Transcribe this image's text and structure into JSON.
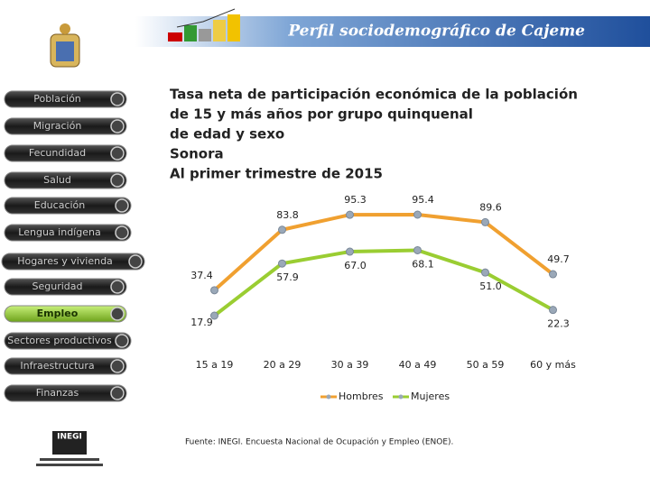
{
  "header": {
    "title": "Perfil sociodemográfico de Cajeme"
  },
  "nav": [
    "Población",
    "Migración",
    "Fecundidad",
    "Salud",
    "Educación",
    "Lengua indígena",
    "Hogares y vivienda",
    "Seguridad",
    "Empleo",
    "Sectores productivos",
    "Infraestructura",
    "Finanzas"
  ],
  "logo_text": "INEGI",
  "chart_data": {
    "type": "line",
    "title_lines": [
      "Tasa neta de participación económica de la población",
      "de 15 y más años por grupo quinquenal",
      "de edad y sexo",
      "Sonora",
      "Al primer trimestre de 2015"
    ],
    "categories": [
      "15 a 19",
      "20 a 29",
      "30 a 39",
      "40 a 49",
      "50 a 59",
      "60 y más"
    ],
    "series": [
      {
        "name": "Hombres",
        "color": "#f0a030",
        "values": [
          37.4,
          83.8,
          95.3,
          95.4,
          89.6,
          49.7
        ],
        "value_labels": [
          "37.4",
          "83.8",
          "95.3",
          "95.4",
          "89.6",
          "49.7"
        ]
      },
      {
        "name": "Mujeres",
        "color": "#9acd32",
        "values": [
          17.9,
          57.9,
          67.0,
          68.1,
          51.0,
          22.3
        ],
        "value_labels": [
          "17.9",
          "57.9",
          "67.0",
          "68.1",
          "51.0",
          "22.3"
        ]
      }
    ],
    "legend": "bottom",
    "source": "Fuente: INEGI. Encuesta Nacional de Ocupación y Empleo (ENOE)."
  }
}
